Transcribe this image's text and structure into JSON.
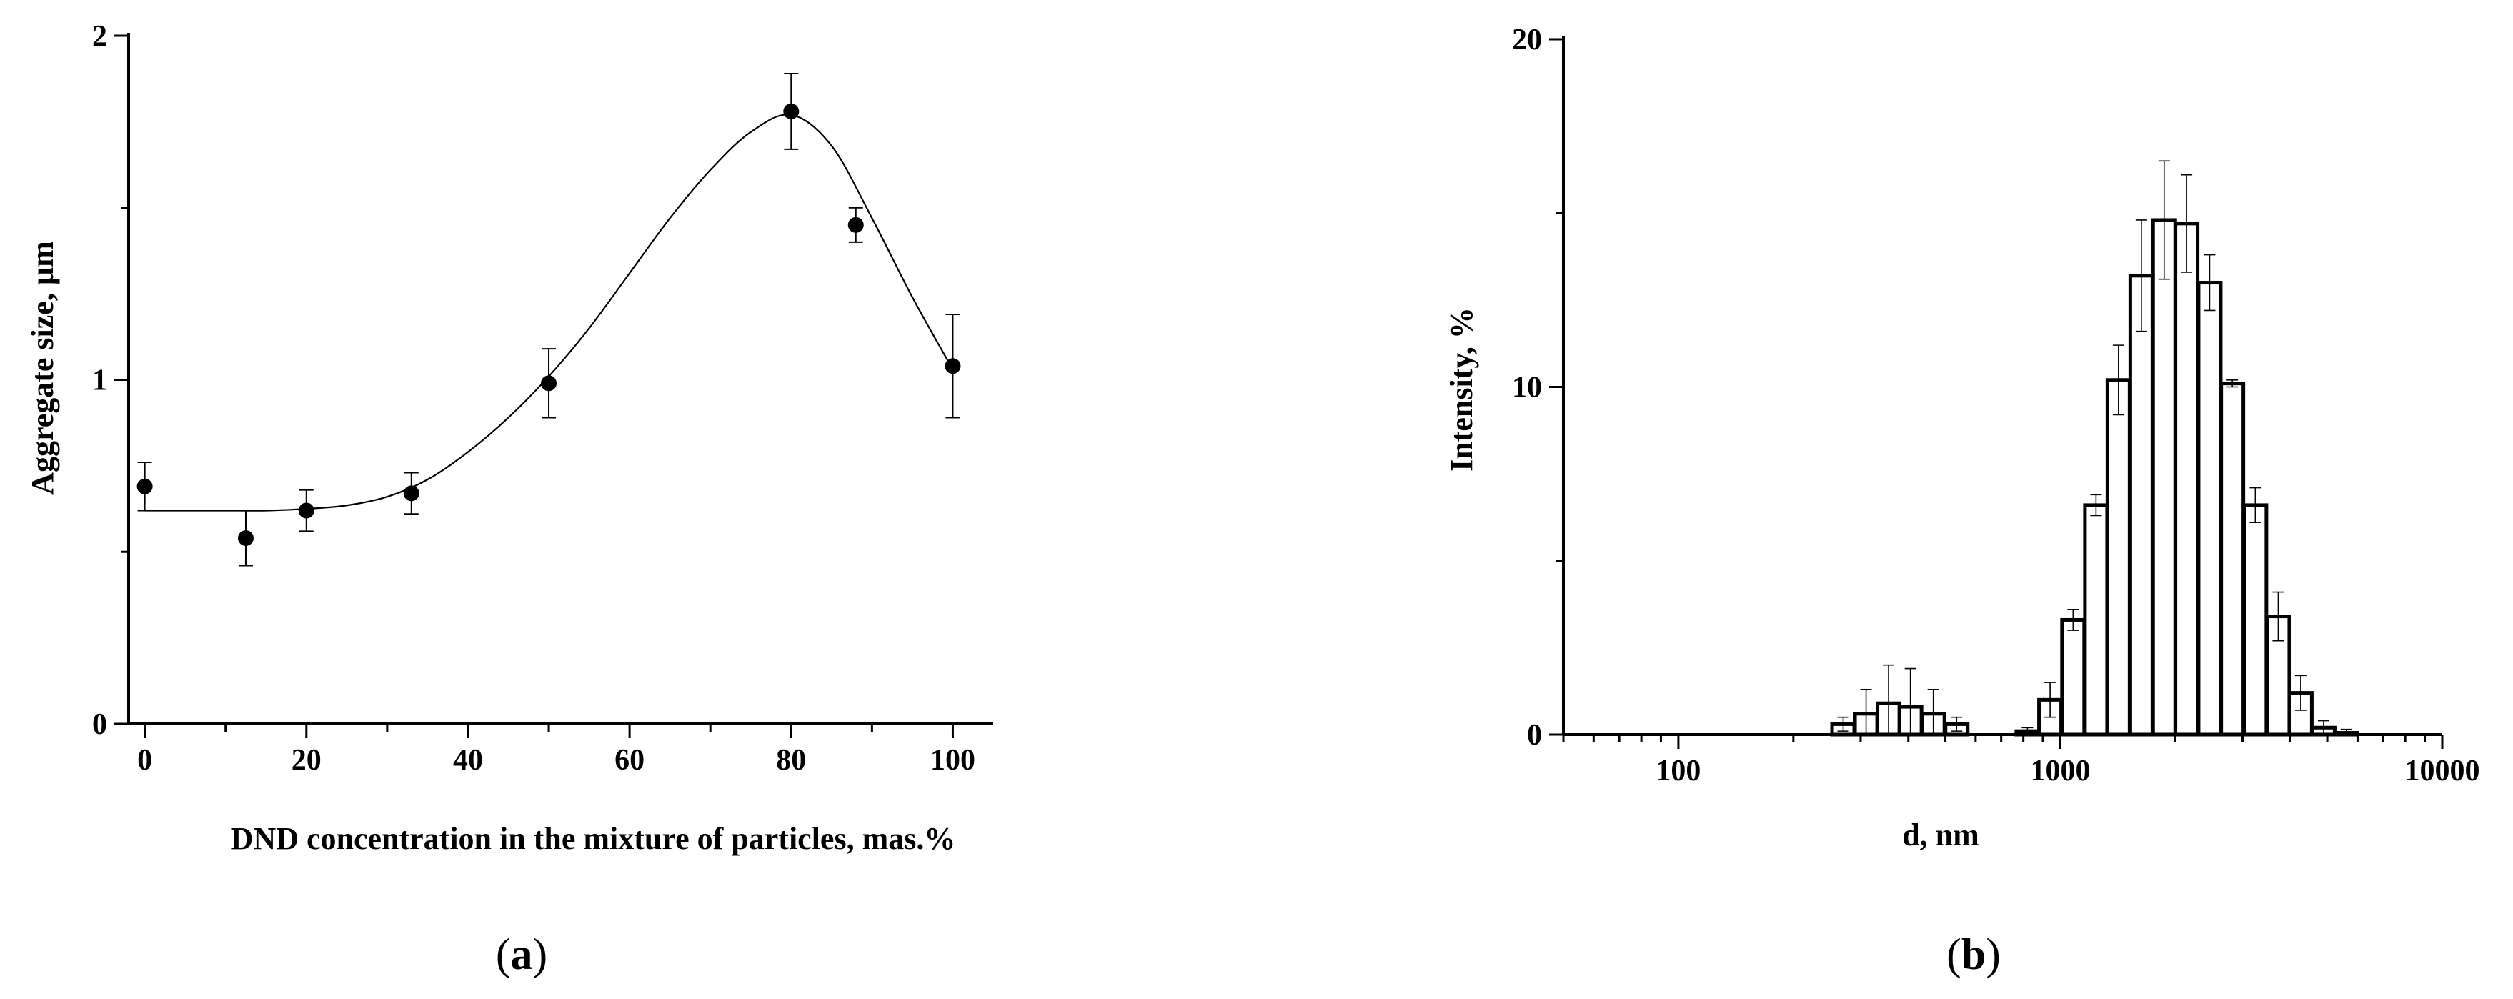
{
  "figure": {
    "panel_a_label": {
      "open": "(",
      "letter": "a",
      "close": ")"
    },
    "panel_b_label": {
      "open": "(",
      "letter": "b",
      "close": ")"
    }
  },
  "chart_data": [
    {
      "type": "scatter",
      "panel": "a",
      "title": "",
      "xlabel": "DND concentration in the mixture of particles, mas.%",
      "ylabel": "Aggregate size, µm",
      "xlim": [
        -2,
        105
      ],
      "ylim": [
        0,
        2
      ],
      "xticks": [
        0,
        20,
        40,
        60,
        80,
        100
      ],
      "yticks": [
        0,
        1,
        2
      ],
      "grid": false,
      "legend": "none",
      "marker_color": "#000000",
      "line_color": "#000000",
      "series": [
        {
          "x": [
            0,
            12.5,
            20,
            33,
            50,
            80,
            88,
            100
          ],
          "y": [
            0.69,
            0.54,
            0.62,
            0.67,
            0.99,
            1.78,
            1.45,
            1.04
          ],
          "yerr": [
            0.07,
            0.08,
            0.06,
            0.06,
            0.1,
            0.11,
            0.05,
            0.15
          ]
        }
      ],
      "fit_curve": {
        "x": [
          0,
          5,
          10,
          15,
          20,
          25,
          30,
          35,
          40,
          45,
          50,
          55,
          60,
          65,
          70,
          75,
          80,
          85,
          90,
          95,
          100
        ],
        "y": [
          0.62,
          0.62,
          0.62,
          0.62,
          0.625,
          0.635,
          0.66,
          0.71,
          0.79,
          0.89,
          1.01,
          1.15,
          1.31,
          1.47,
          1.61,
          1.72,
          1.77,
          1.68,
          1.47,
          1.24,
          1.03
        ]
      }
    },
    {
      "type": "bar",
      "panel": "b",
      "title": "",
      "xlabel": "d, nm",
      "ylabel": "Intensity, %",
      "xscale": "log",
      "xlim": [
        50,
        10000
      ],
      "ylim": [
        0,
        20
      ],
      "xticks": [
        100,
        1000,
        10000
      ],
      "yticks": [
        0,
        10,
        20
      ],
      "grid": false,
      "legend": "none",
      "bar_fill": "#ffffff",
      "bar_edge": "#000000",
      "series": [
        {
          "x": [
            270,
            310,
            355,
            405,
            465,
            535,
            820,
            940,
            1080,
            1240,
            1420,
            1630,
            1870,
            2140,
            2460,
            2820,
            3240,
            3720,
            4260,
            4890,
            5610
          ],
          "y": [
            0.3,
            0.6,
            0.9,
            0.8,
            0.6,
            0.3,
            0.1,
            1.0,
            3.3,
            6.6,
            10.2,
            13.2,
            14.8,
            14.7,
            13.0,
            10.1,
            6.6,
            3.4,
            1.2,
            0.2,
            0.05
          ],
          "yerr": [
            0.2,
            0.7,
            1.1,
            1.1,
            0.7,
            0.2,
            0.1,
            0.5,
            0.3,
            0.3,
            1.0,
            1.6,
            1.7,
            1.4,
            0.8,
            0.1,
            0.5,
            0.7,
            0.5,
            0.2,
            0.1
          ]
        }
      ]
    }
  ]
}
